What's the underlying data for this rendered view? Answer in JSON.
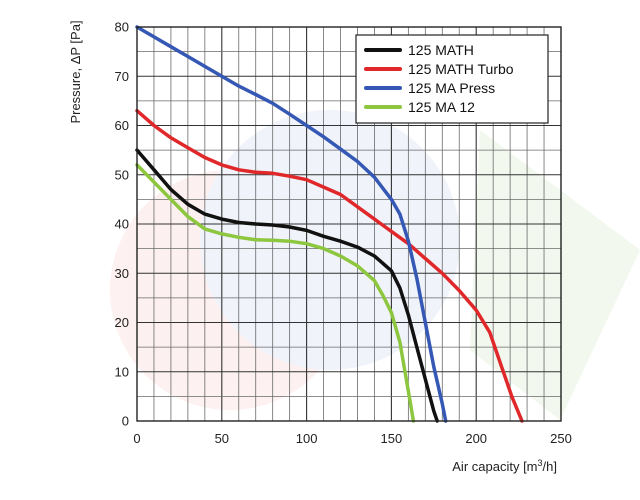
{
  "chart_data": {
    "type": "line",
    "xlabel": "Air capacity [m³/h]",
    "ylabel": "Pressure, ΔP [Pa]",
    "xlim": [
      0,
      250
    ],
    "ylim": [
      0,
      80
    ],
    "x_ticks": [
      0,
      50,
      100,
      150,
      200,
      250
    ],
    "y_ticks": [
      0,
      10,
      20,
      30,
      40,
      50,
      60,
      70,
      80
    ],
    "grid": true,
    "legend_position": "top-right",
    "series": [
      {
        "name": "125 MATH",
        "color": "#111111",
        "points": [
          [
            0,
            55
          ],
          [
            10,
            51
          ],
          [
            20,
            47
          ],
          [
            30,
            44
          ],
          [
            40,
            42
          ],
          [
            50,
            41
          ],
          [
            60,
            40.3
          ],
          [
            70,
            40
          ],
          [
            80,
            39.8
          ],
          [
            90,
            39.4
          ],
          [
            100,
            38.7
          ],
          [
            110,
            37.5
          ],
          [
            120,
            36.5
          ],
          [
            130,
            35.3
          ],
          [
            140,
            33.5
          ],
          [
            150,
            30.5
          ],
          [
            155,
            27
          ],
          [
            160,
            21.5
          ],
          [
            165,
            15
          ],
          [
            170,
            8.5
          ],
          [
            175,
            2
          ],
          [
            177,
            0
          ]
        ]
      },
      {
        "name": "125 MATH Turbo",
        "color": "#e0282a",
        "points": [
          [
            0,
            63
          ],
          [
            10,
            60
          ],
          [
            20,
            57.5
          ],
          [
            30,
            55.5
          ],
          [
            40,
            53.5
          ],
          [
            50,
            52
          ],
          [
            60,
            51
          ],
          [
            70,
            50.5
          ],
          [
            80,
            50.3
          ],
          [
            90,
            49.7
          ],
          [
            100,
            49
          ],
          [
            110,
            47.5
          ],
          [
            120,
            46
          ],
          [
            130,
            43.5
          ],
          [
            140,
            41
          ],
          [
            150,
            38.5
          ],
          [
            160,
            36
          ],
          [
            170,
            33
          ],
          [
            180,
            30
          ],
          [
            190,
            26.5
          ],
          [
            200,
            22.5
          ],
          [
            208,
            18
          ],
          [
            215,
            11
          ],
          [
            221,
            5
          ],
          [
            227,
            0
          ]
        ]
      },
      {
        "name": "125 MA Press",
        "color": "#3558b4",
        "points": [
          [
            0,
            80
          ],
          [
            10,
            78
          ],
          [
            20,
            76
          ],
          [
            30,
            74
          ],
          [
            40,
            72
          ],
          [
            50,
            70
          ],
          [
            60,
            68
          ],
          [
            70,
            66.3
          ],
          [
            80,
            64.5
          ],
          [
            90,
            62.3
          ],
          [
            100,
            60
          ],
          [
            110,
            57.7
          ],
          [
            120,
            55.2
          ],
          [
            130,
            52.7
          ],
          [
            140,
            49.5
          ],
          [
            150,
            45
          ],
          [
            155,
            42
          ],
          [
            160,
            36.5
          ],
          [
            165,
            29
          ],
          [
            170,
            20
          ],
          [
            175,
            11
          ],
          [
            180,
            3.5
          ],
          [
            182,
            0
          ]
        ]
      },
      {
        "name": "125 MA 12",
        "color": "#8dc63f",
        "points": [
          [
            0,
            52
          ],
          [
            10,
            48.5
          ],
          [
            20,
            45
          ],
          [
            30,
            41.5
          ],
          [
            40,
            39
          ],
          [
            50,
            38
          ],
          [
            60,
            37.3
          ],
          [
            70,
            36.8
          ],
          [
            80,
            36.7
          ],
          [
            90,
            36.5
          ],
          [
            100,
            36
          ],
          [
            110,
            35
          ],
          [
            120,
            33.5
          ],
          [
            130,
            31.5
          ],
          [
            140,
            28.5
          ],
          [
            145,
            25.5
          ],
          [
            150,
            22
          ],
          [
            155,
            16
          ],
          [
            158,
            10
          ],
          [
            161,
            4
          ],
          [
            163,
            0
          ]
        ]
      }
    ]
  }
}
